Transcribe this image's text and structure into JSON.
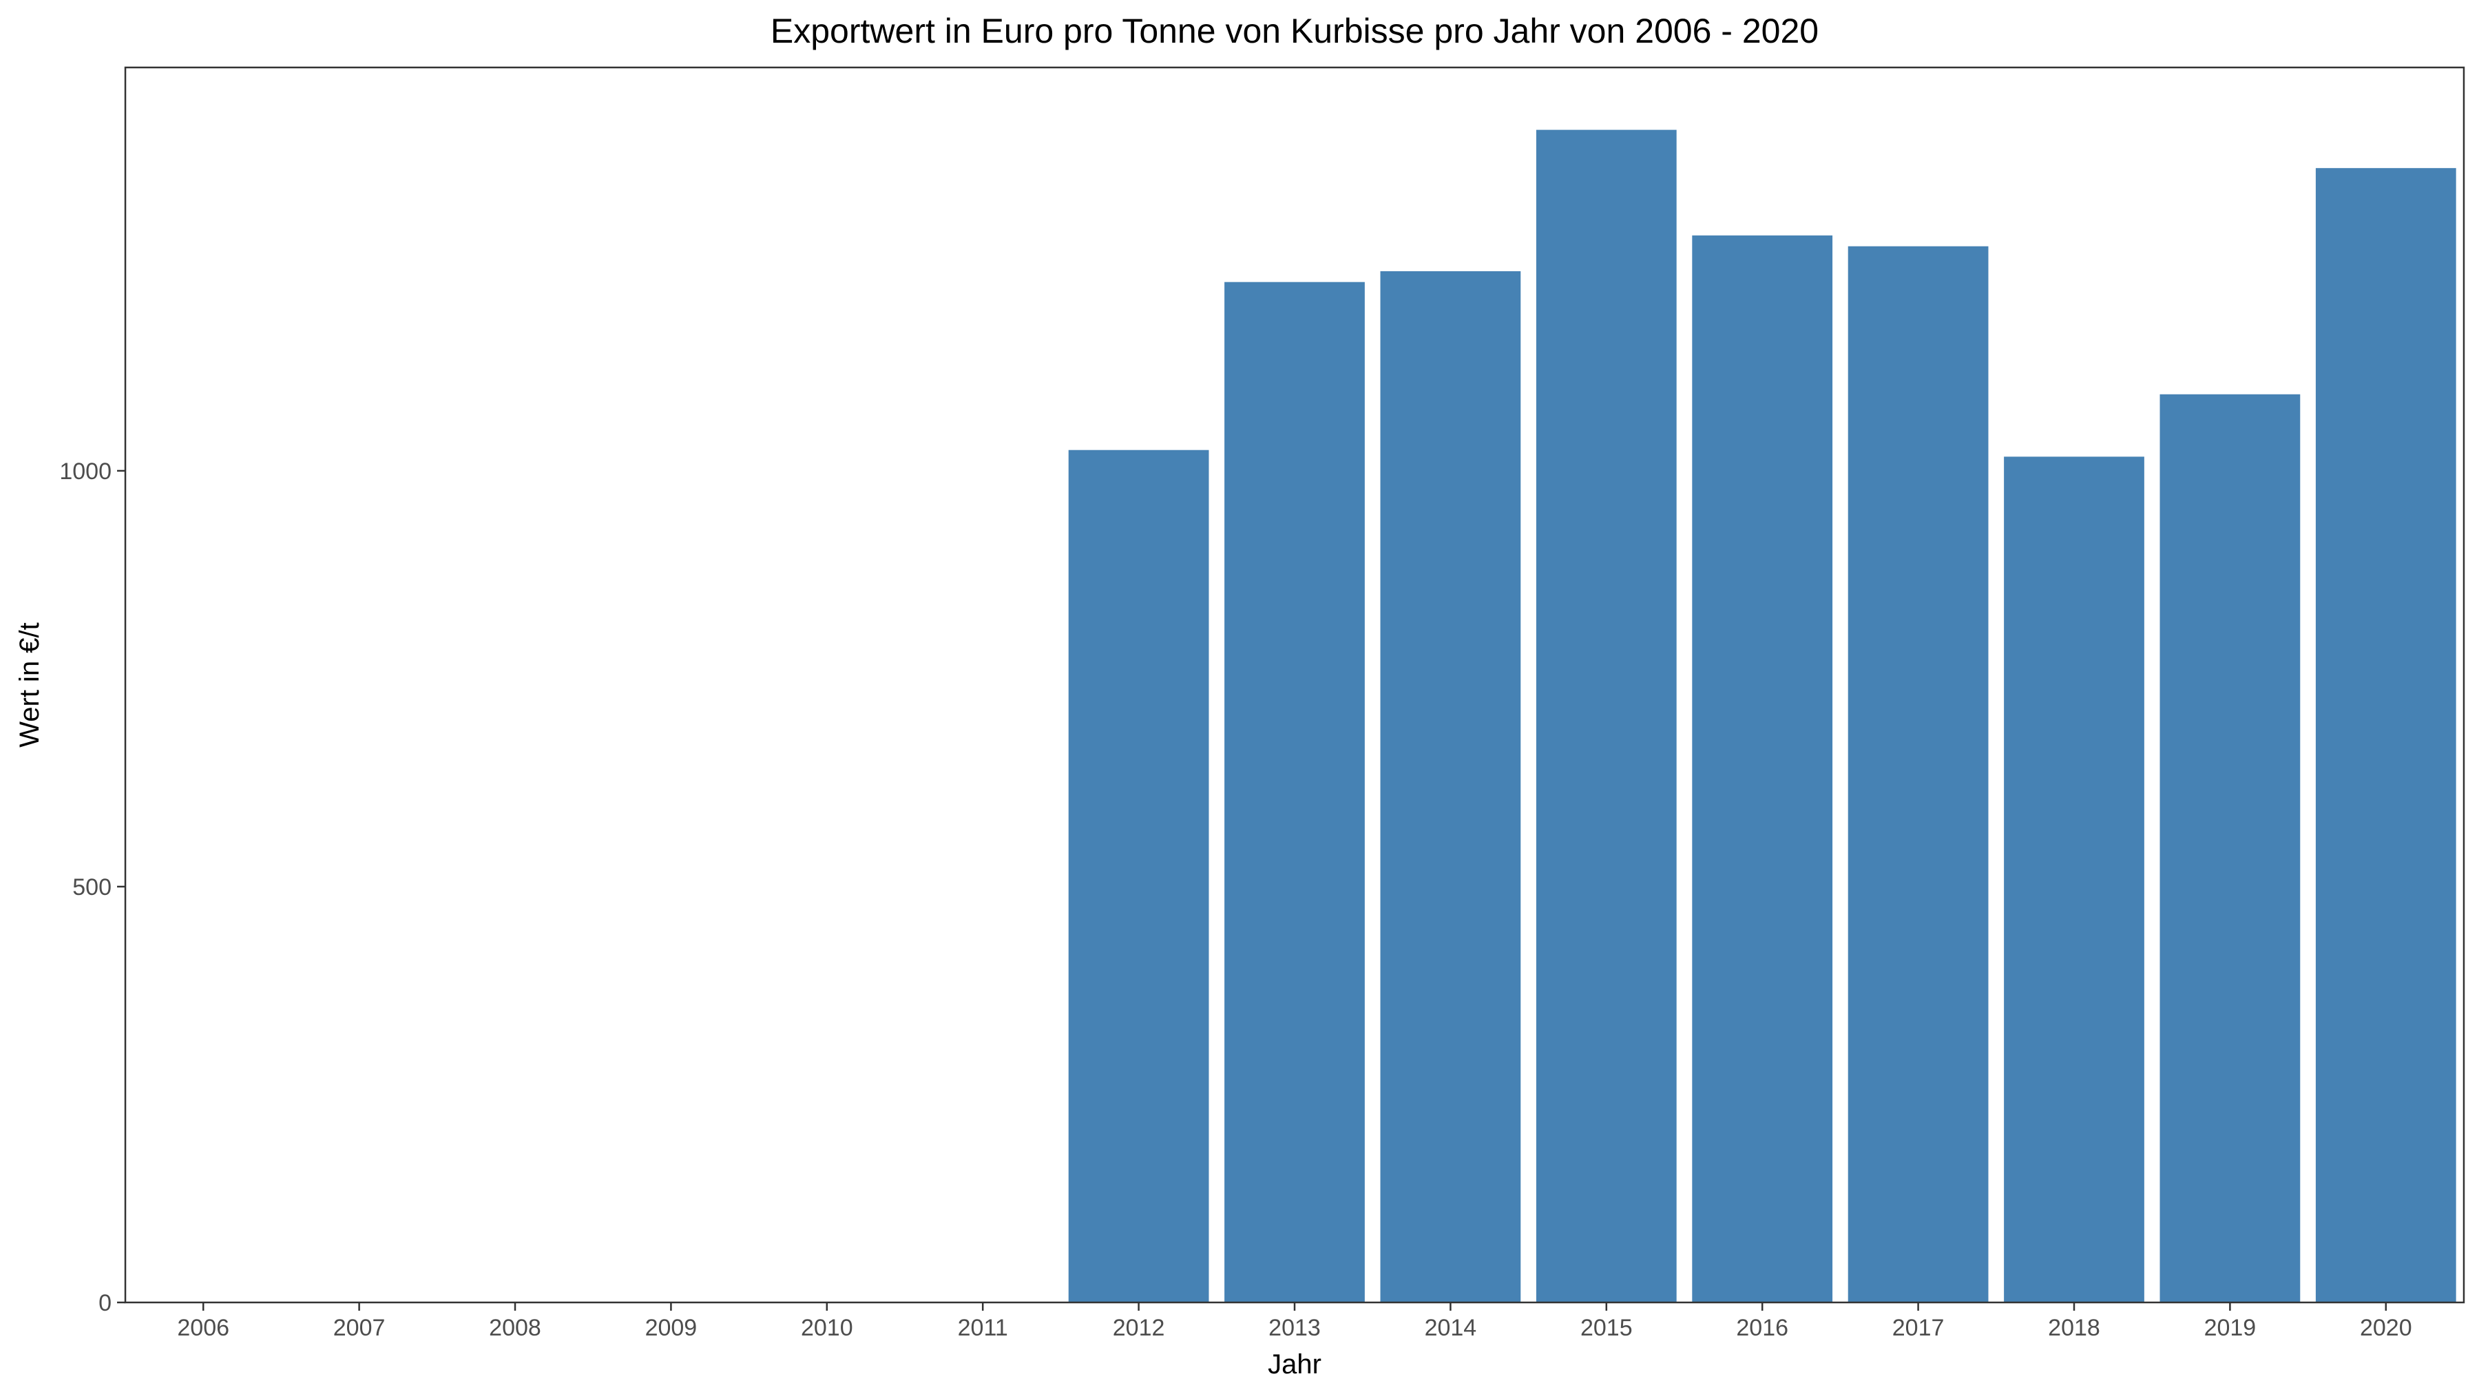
{
  "chart_data": {
    "type": "bar",
    "title": "Exportwert in Euro pro Tonne von Kurbisse pro Jahr von 2006 - 2020",
    "xlabel": "Jahr",
    "ylabel": "Wert in €/t",
    "categories": [
      "2006",
      "2007",
      "2008",
      "2009",
      "2010",
      "2011",
      "2012",
      "2013",
      "2014",
      "2015",
      "2016",
      "2017",
      "2018",
      "2019",
      "2020"
    ],
    "values": [
      0,
      0,
      0,
      0,
      0,
      0,
      1025,
      1227,
      1240,
      1410,
      1283,
      1270,
      1017,
      1092,
      1364
    ],
    "ylim": [
      0,
      1485
    ],
    "yticks": [
      0,
      500,
      1000
    ],
    "bar_color": "#4682B4",
    "grid": false,
    "legend": "none"
  }
}
